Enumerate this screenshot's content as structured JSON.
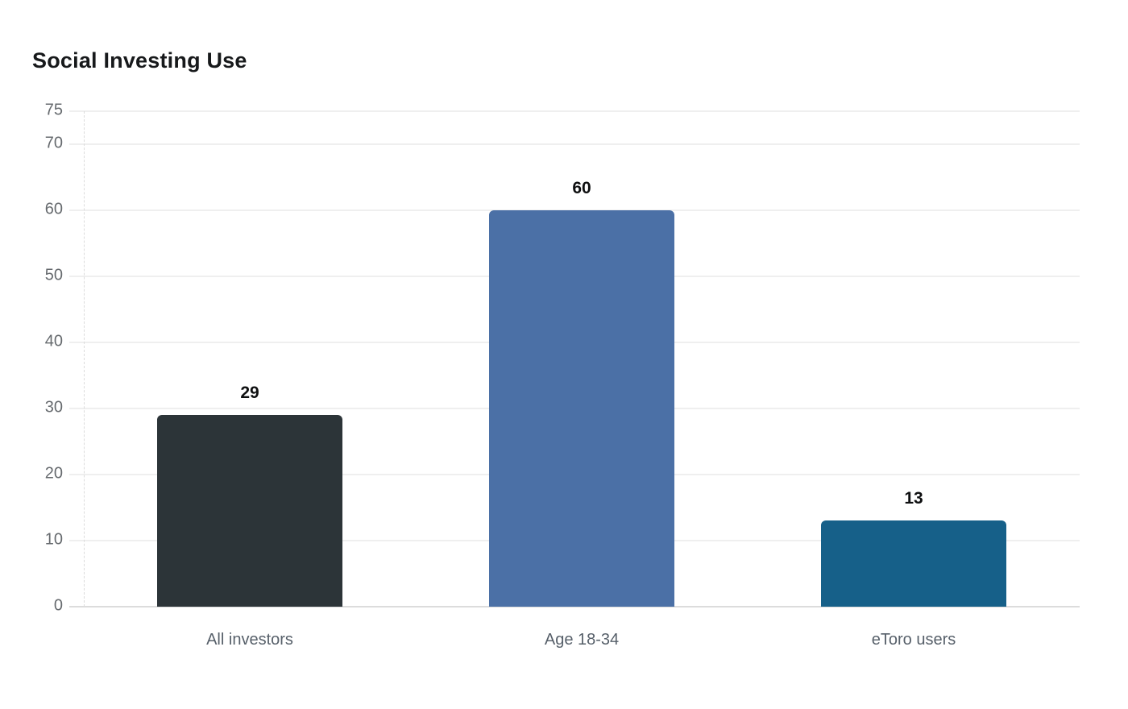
{
  "chart_data": {
    "type": "bar",
    "title": "Social Investing Use",
    "categories": [
      "All investors",
      "Age 18-34",
      "eToro users"
    ],
    "values": [
      29,
      60,
      13
    ],
    "value_labels": [
      "29",
      "60",
      "13"
    ],
    "bar_colors": [
      "#2c3438",
      "#4b70a6",
      "#166089"
    ],
    "xlabel": "",
    "ylabel": "",
    "ylim": [
      0,
      75
    ],
    "yticks": [
      0,
      10,
      20,
      30,
      40,
      50,
      60,
      70,
      75
    ],
    "grid": "horizontal",
    "legend": "none",
    "colors": {
      "background": "#ffffff",
      "gridline": "#efefef",
      "baseline": "#dcdcdc",
      "axis_dashed_line": "#dcdcdc",
      "tick_label": "#666a6e",
      "category_label": "#57606a",
      "value_label": "#0e0f10",
      "title": "#17191b"
    }
  }
}
